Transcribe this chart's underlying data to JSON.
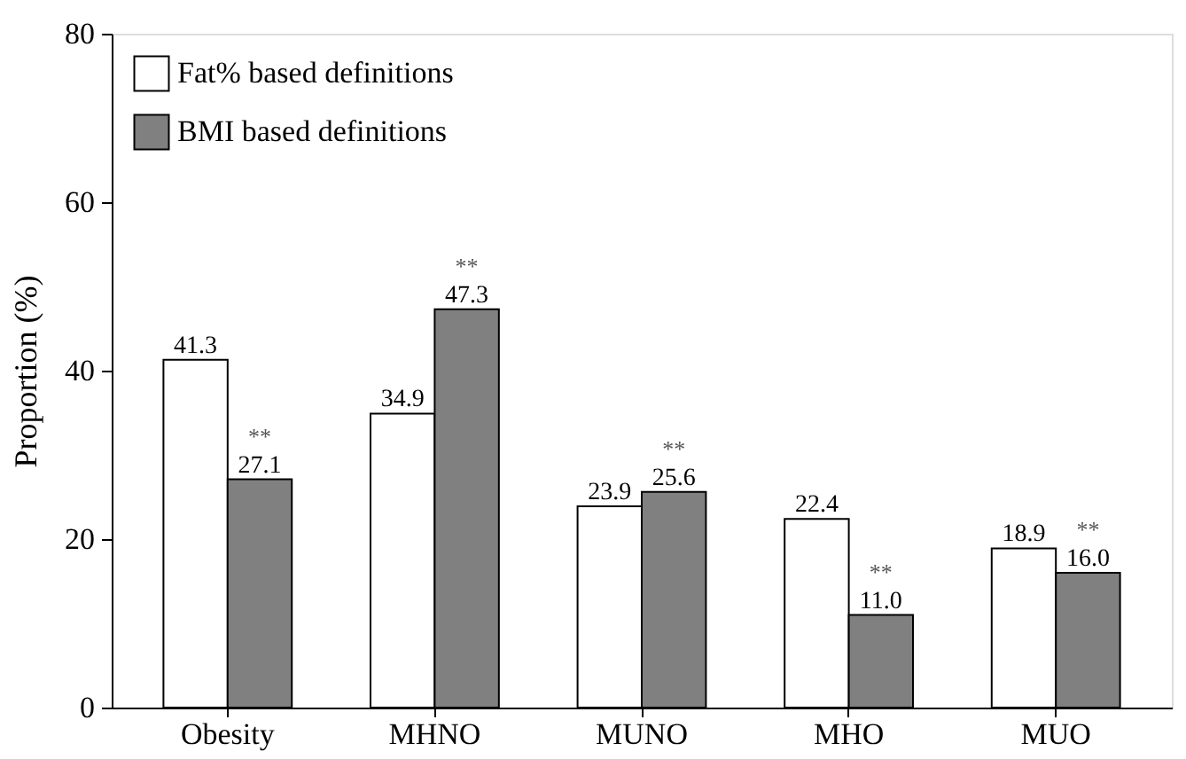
{
  "chart_data": {
    "type": "bar",
    "ylabel": "Proportion (%)",
    "categories": [
      "Obesity",
      "MHNO",
      "MUNO",
      "MHO",
      "MUO"
    ],
    "series": [
      {
        "name": "Fat% based definitions",
        "color": "#ffffff",
        "values": [
          41.3,
          34.9,
          23.9,
          22.4,
          18.9
        ],
        "value_labels": [
          "41.3",
          "34.9",
          "23.9",
          "22.4",
          "18.9"
        ]
      },
      {
        "name": "BMI based definitions",
        "color": "#808080",
        "values": [
          27.1,
          47.3,
          25.6,
          11.0,
          16.0
        ],
        "value_labels": [
          "27.1",
          "47.3",
          "25.6",
          "11.0",
          "16.0"
        ]
      }
    ],
    "annotations": [
      {
        "text": "**",
        "x": "Obesity",
        "y": 27.1
      },
      {
        "text": "**",
        "x": "MHNO",
        "y": 47.3
      },
      {
        "text": "**",
        "x": "MUNO",
        "y": 25.6
      },
      {
        "text": "**",
        "x": "MHO",
        "y": 11.0
      },
      {
        "text": "**",
        "x": "MUO",
        "y": 16.0
      }
    ],
    "ylim": [
      0,
      80
    ],
    "yticks": [
      0,
      20,
      40,
      60,
      80
    ],
    "grid": false,
    "legend": "top left"
  }
}
